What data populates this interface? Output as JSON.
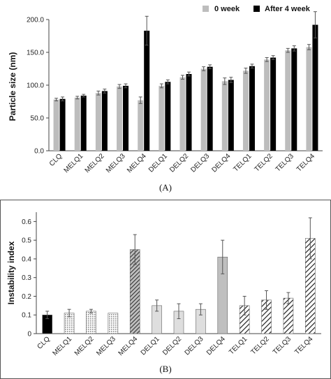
{
  "chart_data": [
    {
      "type": "bar",
      "panel_label": "(A)",
      "ylabel": "Particle size (nm)",
      "xlabel": "",
      "ylim": [
        0,
        200
      ],
      "yticks": [
        "0.0",
        "50.0",
        "100.0",
        "150.0",
        "200.0"
      ],
      "ytick_values": [
        0,
        50,
        100,
        150,
        200
      ],
      "grid": false,
      "legend_position": "top-right",
      "categories": [
        "CLQ",
        "MELQ1",
        "MELQ2",
        "MELQ3",
        "MELQ4",
        "DELQ1",
        "DELQ2",
        "DELQ3",
        "DELQ4",
        "TELQ1",
        "TELQ2",
        "TELQ3",
        "TELQ4"
      ],
      "series": [
        {
          "name": "0 week",
          "color": "#bdbdbd",
          "values": [
            78,
            81,
            88,
            98,
            77,
            99,
            112,
            125,
            106,
            122,
            139,
            153,
            158
          ],
          "errors": [
            2,
            2,
            3,
            3,
            5,
            3,
            3,
            3,
            5,
            4,
            3,
            3,
            4
          ]
        },
        {
          "name": "After 4 week",
          "color": "#000000",
          "values": [
            79,
            84,
            91,
            99,
            183,
            105,
            117,
            128,
            108,
            129,
            142,
            156,
            192
          ],
          "errors": [
            3,
            2,
            3,
            3,
            22,
            3,
            3,
            3,
            4,
            3,
            3,
            4,
            20
          ]
        }
      ]
    },
    {
      "type": "bar",
      "panel_label": "(B)",
      "ylabel": "Instability index",
      "xlabel": "",
      "ylim": [
        0,
        0.65
      ],
      "yticks": [
        "0",
        "0.1",
        "0.2",
        "0.3",
        "0.4",
        "0.5",
        "0.6"
      ],
      "ytick_values": [
        0,
        0.1,
        0.2,
        0.3,
        0.4,
        0.5,
        0.6
      ],
      "grid": false,
      "categories": [
        "CLQ",
        "MELQ1",
        "MELQ2",
        "MELQ3",
        "MELQ4",
        "DELQ1",
        "DELQ2",
        "DELQ3",
        "DELQ4",
        "TELQ1",
        "TELQ2",
        "TELQ3",
        "TELQ4"
      ],
      "values": [
        0.1,
        0.11,
        0.12,
        0.11,
        0.45,
        0.15,
        0.12,
        0.13,
        0.41,
        0.15,
        0.18,
        0.19,
        0.51
      ],
      "errors": [
        0.02,
        0.02,
        0.01,
        0.0,
        0.08,
        0.03,
        0.04,
        0.03,
        0.09,
        0.05,
        0.05,
        0.03,
        0.11
      ],
      "fills": [
        "black",
        "dots",
        "dots",
        "dots",
        "dark-hatch",
        "lightgray",
        "lightgray",
        "lightgray",
        "gray",
        "diag",
        "diag",
        "diag",
        "diag"
      ]
    }
  ]
}
